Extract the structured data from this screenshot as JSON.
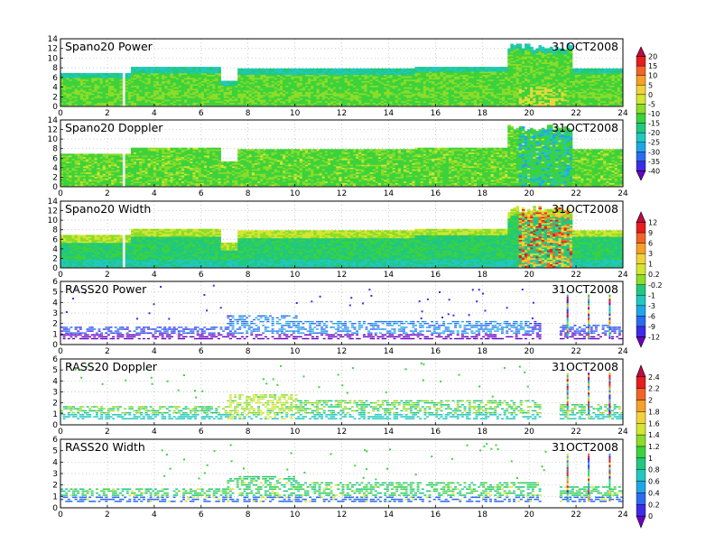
{
  "chart_data": {
    "type": "heatmap",
    "x_ticks": [
      "0",
      "2",
      "4",
      "6",
      "8",
      "10",
      "12",
      "14",
      "16",
      "18",
      "20",
      "22",
      "24"
    ],
    "x_range": [
      0,
      24
    ],
    "date": "31OCT2008",
    "panels": [
      {
        "title": "Spano20  Power",
        "date": "31OCT2008",
        "y_ticks": [
          "0",
          "2",
          "4",
          "6",
          "8",
          "10",
          "12",
          "14"
        ],
        "y_range": [
          0,
          14
        ],
        "kind": "dense",
        "variant": "power"
      },
      {
        "title": "Spano20  Doppler",
        "date": "31OCT2008",
        "y_ticks": [
          "0",
          "2",
          "4",
          "6",
          "8",
          "10",
          "12",
          "14"
        ],
        "y_range": [
          0,
          14
        ],
        "kind": "dense",
        "variant": "doppler"
      },
      {
        "title": "Spano20  Width",
        "date": "31OCT2008",
        "y_ticks": [
          "0",
          "2",
          "4",
          "6",
          "8",
          "10",
          "12",
          "14"
        ],
        "y_range": [
          0,
          14
        ],
        "kind": "dense",
        "variant": "width"
      },
      {
        "title": "RASS20  Power",
        "date": "31OCT2008",
        "y_ticks": [
          "0",
          "1",
          "2",
          "3",
          "4",
          "5",
          "6"
        ],
        "y_range": [
          0,
          6
        ],
        "kind": "sparse",
        "variant": "power"
      },
      {
        "title": "RASS20  Doppler",
        "date": "31OCT2008",
        "y_ticks": [
          "0",
          "1",
          "2",
          "3",
          "4",
          "5",
          "6"
        ],
        "y_range": [
          0,
          6
        ],
        "kind": "sparse",
        "variant": "doppler"
      },
      {
        "title": "RASS20  Width",
        "date": "31OCT2008",
        "y_ticks": [
          "0",
          "1",
          "2",
          "3",
          "4",
          "5",
          "6"
        ],
        "y_range": [
          0,
          6
        ],
        "kind": "sparse",
        "variant": "width"
      }
    ],
    "colorbars": [
      {
        "labels": [
          "20",
          "15",
          "10",
          "5",
          "0",
          "-5",
          "-10",
          "-15",
          "-20",
          "-25",
          "-30",
          "-35",
          "-40"
        ]
      },
      {
        "labels": [
          "12",
          "9",
          "6",
          "3",
          "1",
          "0.2",
          "-0.2",
          "-1",
          "-3",
          "-6",
          "-9",
          "-12"
        ]
      },
      {
        "labels": [
          "2.4",
          "2.2",
          "2",
          "1.8",
          "1.6",
          "1.4",
          "1.2",
          "1",
          "0.8",
          "0.6",
          "0.4",
          "0.2",
          "0"
        ]
      }
    ],
    "colors": {
      "palette": [
        "#6a00c8",
        "#3c2ce6",
        "#2a6cf0",
        "#20a6e8",
        "#20c8c0",
        "#20c880",
        "#3cd23c",
        "#8cdc28",
        "#d2e632",
        "#f0d23c",
        "#f5a028",
        "#f06428",
        "#e61e1e",
        "#be0a46"
      ]
    }
  }
}
